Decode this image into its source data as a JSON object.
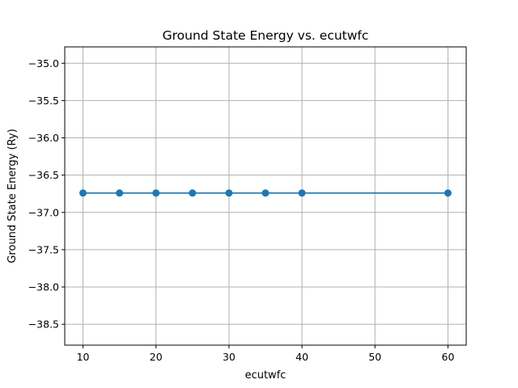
{
  "chart_data": {
    "type": "line",
    "title": "Ground State Energy vs. ecutwfc",
    "xlabel": "ecutwfc",
    "ylabel": "Ground State Energy (Ry)",
    "xlim": [
      7.5,
      62.5
    ],
    "ylim": [
      -38.78,
      -34.78
    ],
    "xticks": [
      10,
      20,
      30,
      40,
      50,
      60
    ],
    "xtick_labels": [
      "10",
      "20",
      "30",
      "40",
      "50",
      "60"
    ],
    "yticks": [
      -35.0,
      -35.5,
      -36.0,
      -36.5,
      -37.0,
      -37.5,
      -38.0,
      -38.5
    ],
    "ytick_labels": [
      "−35.0",
      "−35.5",
      "−36.0",
      "−36.5",
      "−37.0",
      "−37.5",
      "−38.0",
      "−38.5"
    ],
    "grid": true,
    "marker": "circle",
    "series": [
      {
        "color": "#1f77b4",
        "x": [
          10,
          15,
          20,
          25,
          30,
          35,
          40,
          60
        ],
        "y": [
          -36.74,
          -36.74,
          -36.74,
          -36.74,
          -36.74,
          -36.74,
          -36.74,
          -36.74
        ]
      }
    ]
  }
}
